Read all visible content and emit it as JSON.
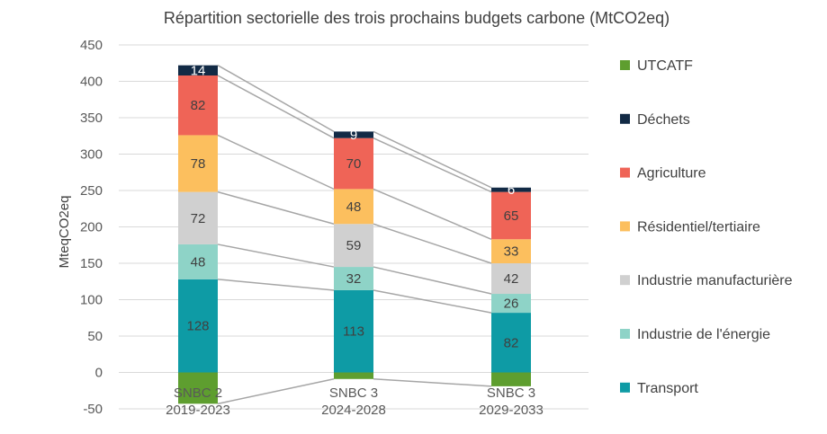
{
  "chart_data": {
    "type": "bar",
    "stacked": true,
    "title": "Répartition sectorielle des trois prochains budgets carbone (MtCO2eq)",
    "xlabel": "",
    "ylabel": "MteqCO2eq",
    "ylim": [
      -50,
      450
    ],
    "yticks": [
      -50,
      0,
      50,
      100,
      150,
      200,
      250,
      300,
      350,
      400,
      450
    ],
    "grid": true,
    "legend_position": "right",
    "categories": [
      [
        "SNBC 2",
        "2019-2023"
      ],
      [
        "SNBC 3",
        "2024-2028"
      ],
      [
        "SNBC 3",
        "2029-2033"
      ]
    ],
    "series": [
      {
        "name": "Transport",
        "color": "#0e9ba5",
        "label_color": "#404040",
        "values": [
          128,
          113,
          82
        ],
        "labels": [
          "128",
          "113",
          "82"
        ]
      },
      {
        "name": "Industrie de l'énergie",
        "color": "#8ed3c7",
        "label_color": "#404040",
        "values": [
          48,
          32,
          26
        ],
        "labels": [
          "48",
          "32",
          "26"
        ]
      },
      {
        "name": "Industrie manufacturière",
        "color": "#d0d0d0",
        "label_color": "#404040",
        "values": [
          72,
          59,
          42
        ],
        "labels": [
          "72",
          "59",
          "42"
        ]
      },
      {
        "name": "Résidentiel/tertiaire",
        "color": "#fcbf5e",
        "label_color": "#404040",
        "values": [
          78,
          48,
          33
        ],
        "labels": [
          "78",
          "48",
          "33"
        ]
      },
      {
        "name": "Agriculture",
        "color": "#ef6457",
        "label_color": "#404040",
        "values": [
          82,
          70,
          65
        ],
        "labels": [
          "82",
          "70",
          "65"
        ]
      },
      {
        "name": "Déchets",
        "color": "#122a45",
        "label_color": "#ffffff",
        "values": [
          14,
          9,
          6
        ],
        "labels": [
          "14",
          "9",
          "6"
        ]
      },
      {
        "name": "UTCATF",
        "color": "#5e9e2f",
        "label_color": "#404040",
        "values": [
          -43,
          -9,
          -19
        ],
        "labels": [
          "",
          "",
          ""
        ]
      }
    ],
    "legend_order": [
      "UTCATF",
      "Déchets",
      "Agriculture",
      "Résidentiel/tertiaire",
      "Industrie manufacturière",
      "Industrie de l'énergie",
      "Transport"
    ],
    "connector_color": "#a6a6a6"
  }
}
